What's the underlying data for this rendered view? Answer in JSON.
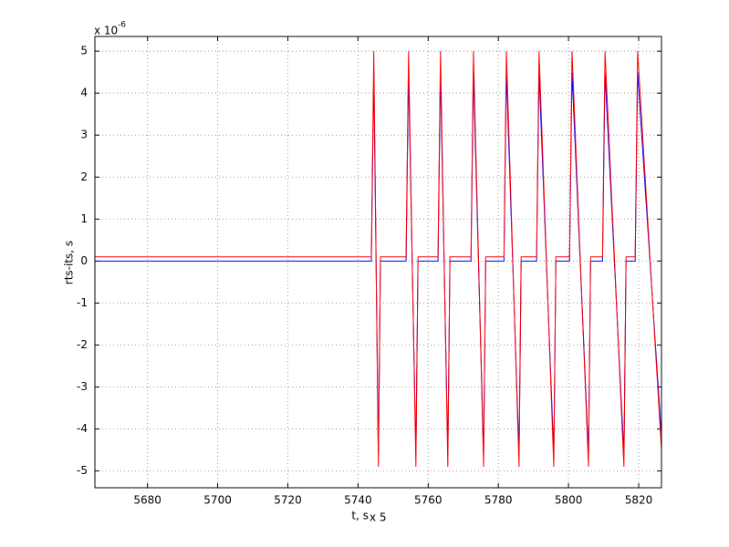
{
  "chart_data": {
    "type": "line",
    "y_multiplier": "x 10",
    "y_multiplier_exponent": "-6",
    "xlabel": "t, s",
    "x_multiplier": "x 5",
    "ylabel": "rts-its, s",
    "xlim": [
      5665,
      5826.5
    ],
    "ylim": [
      -5.4,
      5.35
    ],
    "xticks": [
      5680,
      5700,
      5720,
      5740,
      5760,
      5780,
      5800,
      5820
    ],
    "yticks": [
      -5,
      -4,
      -3,
      -2,
      -1,
      0,
      1,
      2,
      3,
      4,
      5
    ],
    "grid": true,
    "series": [
      {
        "color": "#0000ff",
        "x": [
          5665,
          5743.8,
          5744.5,
          5745.8,
          5746.4,
          5753.7,
          5754.4,
          5756.5,
          5757.1,
          5762.8,
          5763.5,
          5765.6,
          5766.2,
          5772.2,
          5772.9,
          5775.8,
          5776.4,
          5781.6,
          5782.3,
          5785.9,
          5786.5,
          5790.9,
          5791.6,
          5795.8,
          5796.4,
          5800.3,
          5801.0,
          5805.7,
          5806.3,
          5809.7,
          5810.4,
          5815.8,
          5816.4,
          5819.0,
          5819.7,
          5826.5
        ],
        "values": [
          0,
          0,
          4.5,
          -4.6,
          0,
          0,
          4.5,
          -4.6,
          0,
          0,
          4.5,
          -4.6,
          0,
          0,
          4.5,
          -4.6,
          0,
          0,
          4.5,
          -4.6,
          0,
          0,
          4.5,
          -4.6,
          0,
          0,
          4.5,
          -4.6,
          0,
          0,
          4.5,
          -4.6,
          0,
          0,
          4.5,
          -4.2
        ]
      },
      {
        "color": "#ff0000",
        "x": [
          5665,
          5743.8,
          5744.5,
          5745.8,
          5746.4,
          5753.7,
          5754.4,
          5756.5,
          5757.1,
          5762.8,
          5763.5,
          5765.6,
          5766.2,
          5772.2,
          5772.9,
          5775.8,
          5776.4,
          5781.6,
          5782.3,
          5785.9,
          5786.5,
          5790.9,
          5791.6,
          5795.8,
          5796.4,
          5800.3,
          5801.0,
          5805.7,
          5806.3,
          5809.7,
          5810.4,
          5815.8,
          5816.4,
          5819.0,
          5819.7,
          5826.5
        ],
        "values": [
          0.1,
          0.1,
          5,
          -4.9,
          0.1,
          0.1,
          5,
          -4.9,
          0.1,
          0.1,
          5,
          -4.9,
          0.1,
          0.1,
          5,
          -4.9,
          0.1,
          0.1,
          5,
          -4.9,
          0.1,
          0.1,
          5,
          -4.9,
          0.1,
          0.1,
          5,
          -4.9,
          0.1,
          0.1,
          5,
          -4.9,
          0.1,
          0.1,
          5,
          -4.5
        ]
      }
    ]
  }
}
